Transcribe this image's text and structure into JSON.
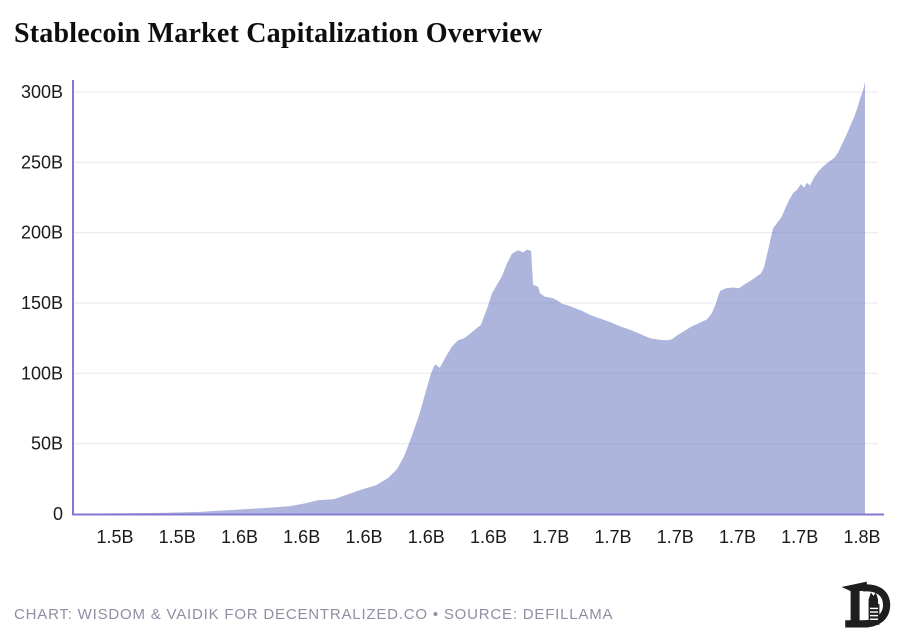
{
  "header": {
    "title": "Stablecoin Market Capitalization Overview"
  },
  "footer": {
    "credit": "CHART: WISDOM & VAIDIK FOR DECENTRALIZED.CO • SOURCE: DEFILLAMA",
    "logo_name": "decentralized-co-llama-d-logo"
  },
  "colors": {
    "title_text": "#0e0e0e",
    "tick_text": "#1b1b1b",
    "gridline": "#e8e8ec",
    "axis": "#8678d2",
    "area_fill": "#5d6bbb",
    "area_fill_opacity": 0.5,
    "footer_text": "#8e8fa2",
    "logo": "#1e1e1e"
  },
  "chart_data": {
    "type": "area",
    "title": "Stablecoin Market Capitalization Overview",
    "xlabel": "",
    "ylabel": "",
    "y_unit": "USD billions",
    "x_unit": "unix timestamp (billions of seconds)",
    "ylim": [
      0,
      300
    ],
    "xlim": [
      1.4831,
      1.8012
    ],
    "grid": "horizontal-only",
    "legend": "none",
    "yticks": [
      {
        "v": 0,
        "label": "0"
      },
      {
        "v": 50,
        "label": "50B"
      },
      {
        "v": 100,
        "label": "100B"
      },
      {
        "v": 150,
        "label": "150B"
      },
      {
        "v": 200,
        "label": "200B"
      },
      {
        "v": 250,
        "label": "250B"
      },
      {
        "v": 300,
        "label": "300B"
      }
    ],
    "xticks": [
      {
        "v": 1.5,
        "label": "1.5B"
      },
      {
        "v": 1.525,
        "label": "1.5B"
      },
      {
        "v": 1.55,
        "label": "1.6B"
      },
      {
        "v": 1.575,
        "label": "1.6B"
      },
      {
        "v": 1.6,
        "label": "1.6B"
      },
      {
        "v": 1.625,
        "label": "1.6B"
      },
      {
        "v": 1.65,
        "label": "1.6B"
      },
      {
        "v": 1.675,
        "label": "1.7B"
      },
      {
        "v": 1.7,
        "label": "1.7B"
      },
      {
        "v": 1.725,
        "label": "1.7B"
      },
      {
        "v": 1.75,
        "label": "1.7B"
      },
      {
        "v": 1.775,
        "label": "1.7B"
      },
      {
        "v": 1.8,
        "label": "1.8B"
      }
    ],
    "points": [
      [
        1.4831,
        0.3
      ],
      [
        1.502,
        0.5
      ],
      [
        1.5181,
        0.8
      ],
      [
        1.5341,
        1.5
      ],
      [
        1.5482,
        3.0
      ],
      [
        1.5602,
        4.3
      ],
      [
        1.5703,
        5.6
      ],
      [
        1.5763,
        7.5
      ],
      [
        1.5815,
        9.8
      ],
      [
        1.588,
        10.6
      ],
      [
        1.5936,
        14.0
      ],
      [
        1.5992,
        17.5
      ],
      [
        1.6048,
        20.5
      ],
      [
        1.6096,
        25.5
      ],
      [
        1.6133,
        32.0
      ],
      [
        1.6161,
        41.0
      ],
      [
        1.6189,
        54.0
      ],
      [
        1.6221,
        70.0
      ],
      [
        1.6245,
        85.0
      ],
      [
        1.6269,
        100.0
      ],
      [
        1.6285,
        106.5
      ],
      [
        1.6305,
        104.0
      ],
      [
        1.6329,
        112.0
      ],
      [
        1.6353,
        119.0
      ],
      [
        1.6378,
        123.5
      ],
      [
        1.6402,
        125.0
      ],
      [
        1.6418,
        127.0
      ],
      [
        1.6442,
        130.5
      ],
      [
        1.647,
        134.5
      ],
      [
        1.6494,
        146.0
      ],
      [
        1.6514,
        157.0
      ],
      [
        1.6534,
        163.0
      ],
      [
        1.6554,
        169.0
      ],
      [
        1.6574,
        178.0
      ],
      [
        1.6594,
        185.0
      ],
      [
        1.6618,
        187.5
      ],
      [
        1.6639,
        186.0
      ],
      [
        1.6655,
        188.0
      ],
      [
        1.6671,
        187.0
      ],
      [
        1.6679,
        163.0
      ],
      [
        1.6699,
        161.5
      ],
      [
        1.6707,
        157.0
      ],
      [
        1.6727,
        154.5
      ],
      [
        1.6759,
        153.5
      ],
      [
        1.6779,
        151.5
      ],
      [
        1.6795,
        149.5
      ],
      [
        1.6815,
        148.5
      ],
      [
        1.6839,
        147.0
      ],
      [
        1.6859,
        145.5
      ],
      [
        1.6875,
        144.5
      ],
      [
        1.6908,
        141.5
      ],
      [
        1.6948,
        139.0
      ],
      [
        1.6988,
        136.5
      ],
      [
        1.7028,
        133.5
      ],
      [
        1.7068,
        131.0
      ],
      [
        1.7108,
        128.0
      ],
      [
        1.7149,
        125.0
      ],
      [
        1.7189,
        123.8
      ],
      [
        1.7217,
        123.5
      ],
      [
        1.7237,
        124.2
      ],
      [
        1.7253,
        126.5
      ],
      [
        1.7285,
        130.0
      ],
      [
        1.7317,
        133.5
      ],
      [
        1.7349,
        136.0
      ],
      [
        1.7378,
        138.5
      ],
      [
        1.7398,
        143.0
      ],
      [
        1.7414,
        150.0
      ],
      [
        1.7422,
        155.0
      ],
      [
        1.743,
        158.5
      ],
      [
        1.7454,
        160.5
      ],
      [
        1.7482,
        161.0
      ],
      [
        1.7506,
        160.5
      ],
      [
        1.753,
        163.5
      ],
      [
        1.7554,
        166.0
      ],
      [
        1.7578,
        169.0
      ],
      [
        1.7594,
        171.0
      ],
      [
        1.7606,
        175.0
      ],
      [
        1.7618,
        184.0
      ],
      [
        1.7631,
        194.0
      ],
      [
        1.7643,
        203.0
      ],
      [
        1.7659,
        207.0
      ],
      [
        1.7675,
        210.5
      ],
      [
        1.7691,
        217.0
      ],
      [
        1.7707,
        223.0
      ],
      [
        1.7723,
        228.0
      ],
      [
        1.7739,
        230.5
      ],
      [
        1.7755,
        234.5
      ],
      [
        1.7767,
        232.0
      ],
      [
        1.7779,
        235.5
      ],
      [
        1.7791,
        233.5
      ],
      [
        1.7807,
        239.0
      ],
      [
        1.7827,
        244.0
      ],
      [
        1.7847,
        247.5
      ],
      [
        1.7867,
        250.5
      ],
      [
        1.7888,
        253.0
      ],
      [
        1.7904,
        257.0
      ],
      [
        1.792,
        263.0
      ],
      [
        1.7936,
        269.0
      ],
      [
        1.7952,
        275.5
      ],
      [
        1.7968,
        282.0
      ],
      [
        1.798,
        288.0
      ],
      [
        1.7992,
        295.0
      ],
      [
        1.8004,
        301.0
      ],
      [
        1.8012,
        307.0
      ]
    ]
  }
}
